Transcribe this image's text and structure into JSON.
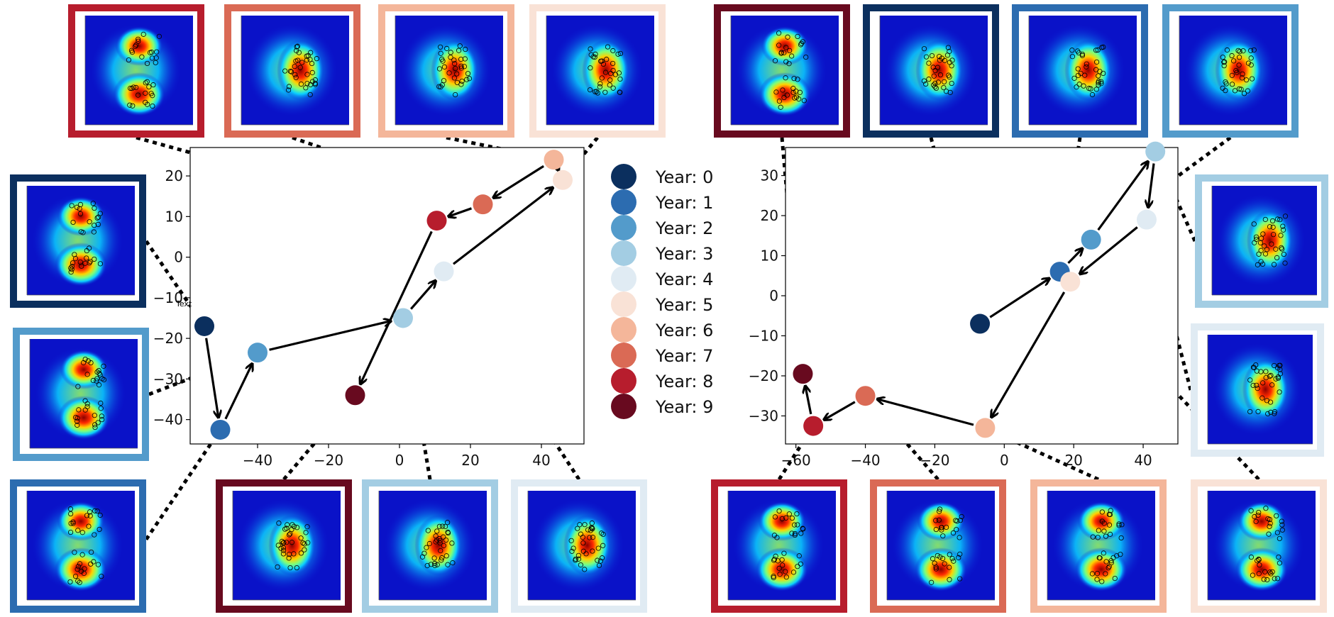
{
  "chart_data": [
    {
      "type": "scatter",
      "name": "left-panel",
      "title": "",
      "xlabel": "",
      "ylabel": "",
      "xlim": [
        -59,
        52
      ],
      "ylim": [
        -46,
        27
      ],
      "x_ticks": [
        -40,
        -20,
        0,
        20,
        40
      ],
      "y_ticks": [
        -40,
        -30,
        -20,
        -10,
        0,
        10,
        20
      ],
      "tick_labels_x": [
        "−40",
        "−20",
        "0",
        "20",
        "40"
      ],
      "tick_labels_y": [
        "−40",
        "−30",
        "−20",
        "−10",
        "0",
        "10",
        "20"
      ],
      "points": [
        {
          "year": 0,
          "x": -55,
          "y": -17
        },
        {
          "year": 1,
          "x": -50.5,
          "y": -42.5
        },
        {
          "year": 2,
          "x": -40,
          "y": -23.5
        },
        {
          "year": 3,
          "x": 1,
          "y": -15
        },
        {
          "year": 4,
          "x": 12.5,
          "y": -3.5
        },
        {
          "year": 5,
          "x": 46,
          "y": 19
        },
        {
          "year": 6,
          "x": 43.5,
          "y": 24
        },
        {
          "year": 7,
          "x": 23.5,
          "y": 13
        },
        {
          "year": 8,
          "x": 10.5,
          "y": 9
        },
        {
          "year": 9,
          "x": -12.5,
          "y": -34
        }
      ],
      "thumbnails": [
        {
          "year": 8,
          "link_year": 8
        },
        {
          "year": 7,
          "link_year": 7
        },
        {
          "year": 6,
          "link_year": 6
        },
        {
          "year": 5,
          "link_year": 5
        },
        {
          "year": 0,
          "link_year": 0
        },
        {
          "year": 2,
          "link_year": 2
        },
        {
          "year": 1,
          "link_year": 1
        },
        {
          "year": 9,
          "link_year": 9
        },
        {
          "year": 3,
          "link_year": 3
        },
        {
          "year": 4,
          "link_year": 4
        }
      ]
    },
    {
      "type": "scatter",
      "name": "right-panel",
      "title": "",
      "xlabel": "",
      "ylabel": "",
      "xlim": [
        -63,
        50
      ],
      "ylim": [
        -37,
        37
      ],
      "x_ticks": [
        -60,
        -40,
        -20,
        0,
        20,
        40
      ],
      "y_ticks": [
        -30,
        -20,
        -10,
        0,
        10,
        20,
        30
      ],
      "tick_labels_x": [
        "−60",
        "−40",
        "−20",
        "0",
        "20",
        "40"
      ],
      "tick_labels_y": [
        "−30",
        "−20",
        "−10",
        "0",
        "10",
        "20",
        "30"
      ],
      "points": [
        {
          "year": 0,
          "x": -7,
          "y": -7
        },
        {
          "year": 1,
          "x": 16,
          "y": 6
        },
        {
          "year": 2,
          "x": 25,
          "y": 14
        },
        {
          "year": 3,
          "x": 43.5,
          "y": 36
        },
        {
          "year": 4,
          "x": 41,
          "y": 19
        },
        {
          "year": 5,
          "x": 19,
          "y": 3.5
        },
        {
          "year": 6,
          "x": -5.5,
          "y": -33
        },
        {
          "year": 7,
          "x": -40,
          "y": -25
        },
        {
          "year": 8,
          "x": -55,
          "y": -32.5
        },
        {
          "year": 9,
          "x": -58,
          "y": -19.5
        }
      ],
      "thumbnails": [
        {
          "year": 9,
          "link_year": 9
        },
        {
          "year": 0,
          "link_year": 0
        },
        {
          "year": 1,
          "link_year": 1
        },
        {
          "year": 2,
          "link_year": 2
        },
        {
          "year": 3,
          "link_year": 3
        },
        {
          "year": 4,
          "link_year": 4
        },
        {
          "year": 8,
          "link_year": 8
        },
        {
          "year": 7,
          "link_year": 7
        },
        {
          "year": 6,
          "link_year": 6
        },
        {
          "year": 5,
          "link_year": 5
        }
      ]
    }
  ],
  "legend": {
    "entries": [
      {
        "label": "Year: 0",
        "color": "#0b2f5e"
      },
      {
        "label": "Year: 1",
        "color": "#2c6cb0"
      },
      {
        "label": "Year: 2",
        "color": "#539bcb"
      },
      {
        "label": "Year: 3",
        "color": "#a3cde3"
      },
      {
        "label": "Year: 4",
        "color": "#e0ebf3"
      },
      {
        "label": "Year: 5",
        "color": "#f9e2d6"
      },
      {
        "label": "Year: 6",
        "color": "#f4b69a"
      },
      {
        "label": "Year: 7",
        "color": "#da6a55"
      },
      {
        "label": "Year: 8",
        "color": "#b71d2d"
      },
      {
        "label": "Year: 9",
        "color": "#680a1f"
      }
    ]
  },
  "stray_label": "Text"
}
